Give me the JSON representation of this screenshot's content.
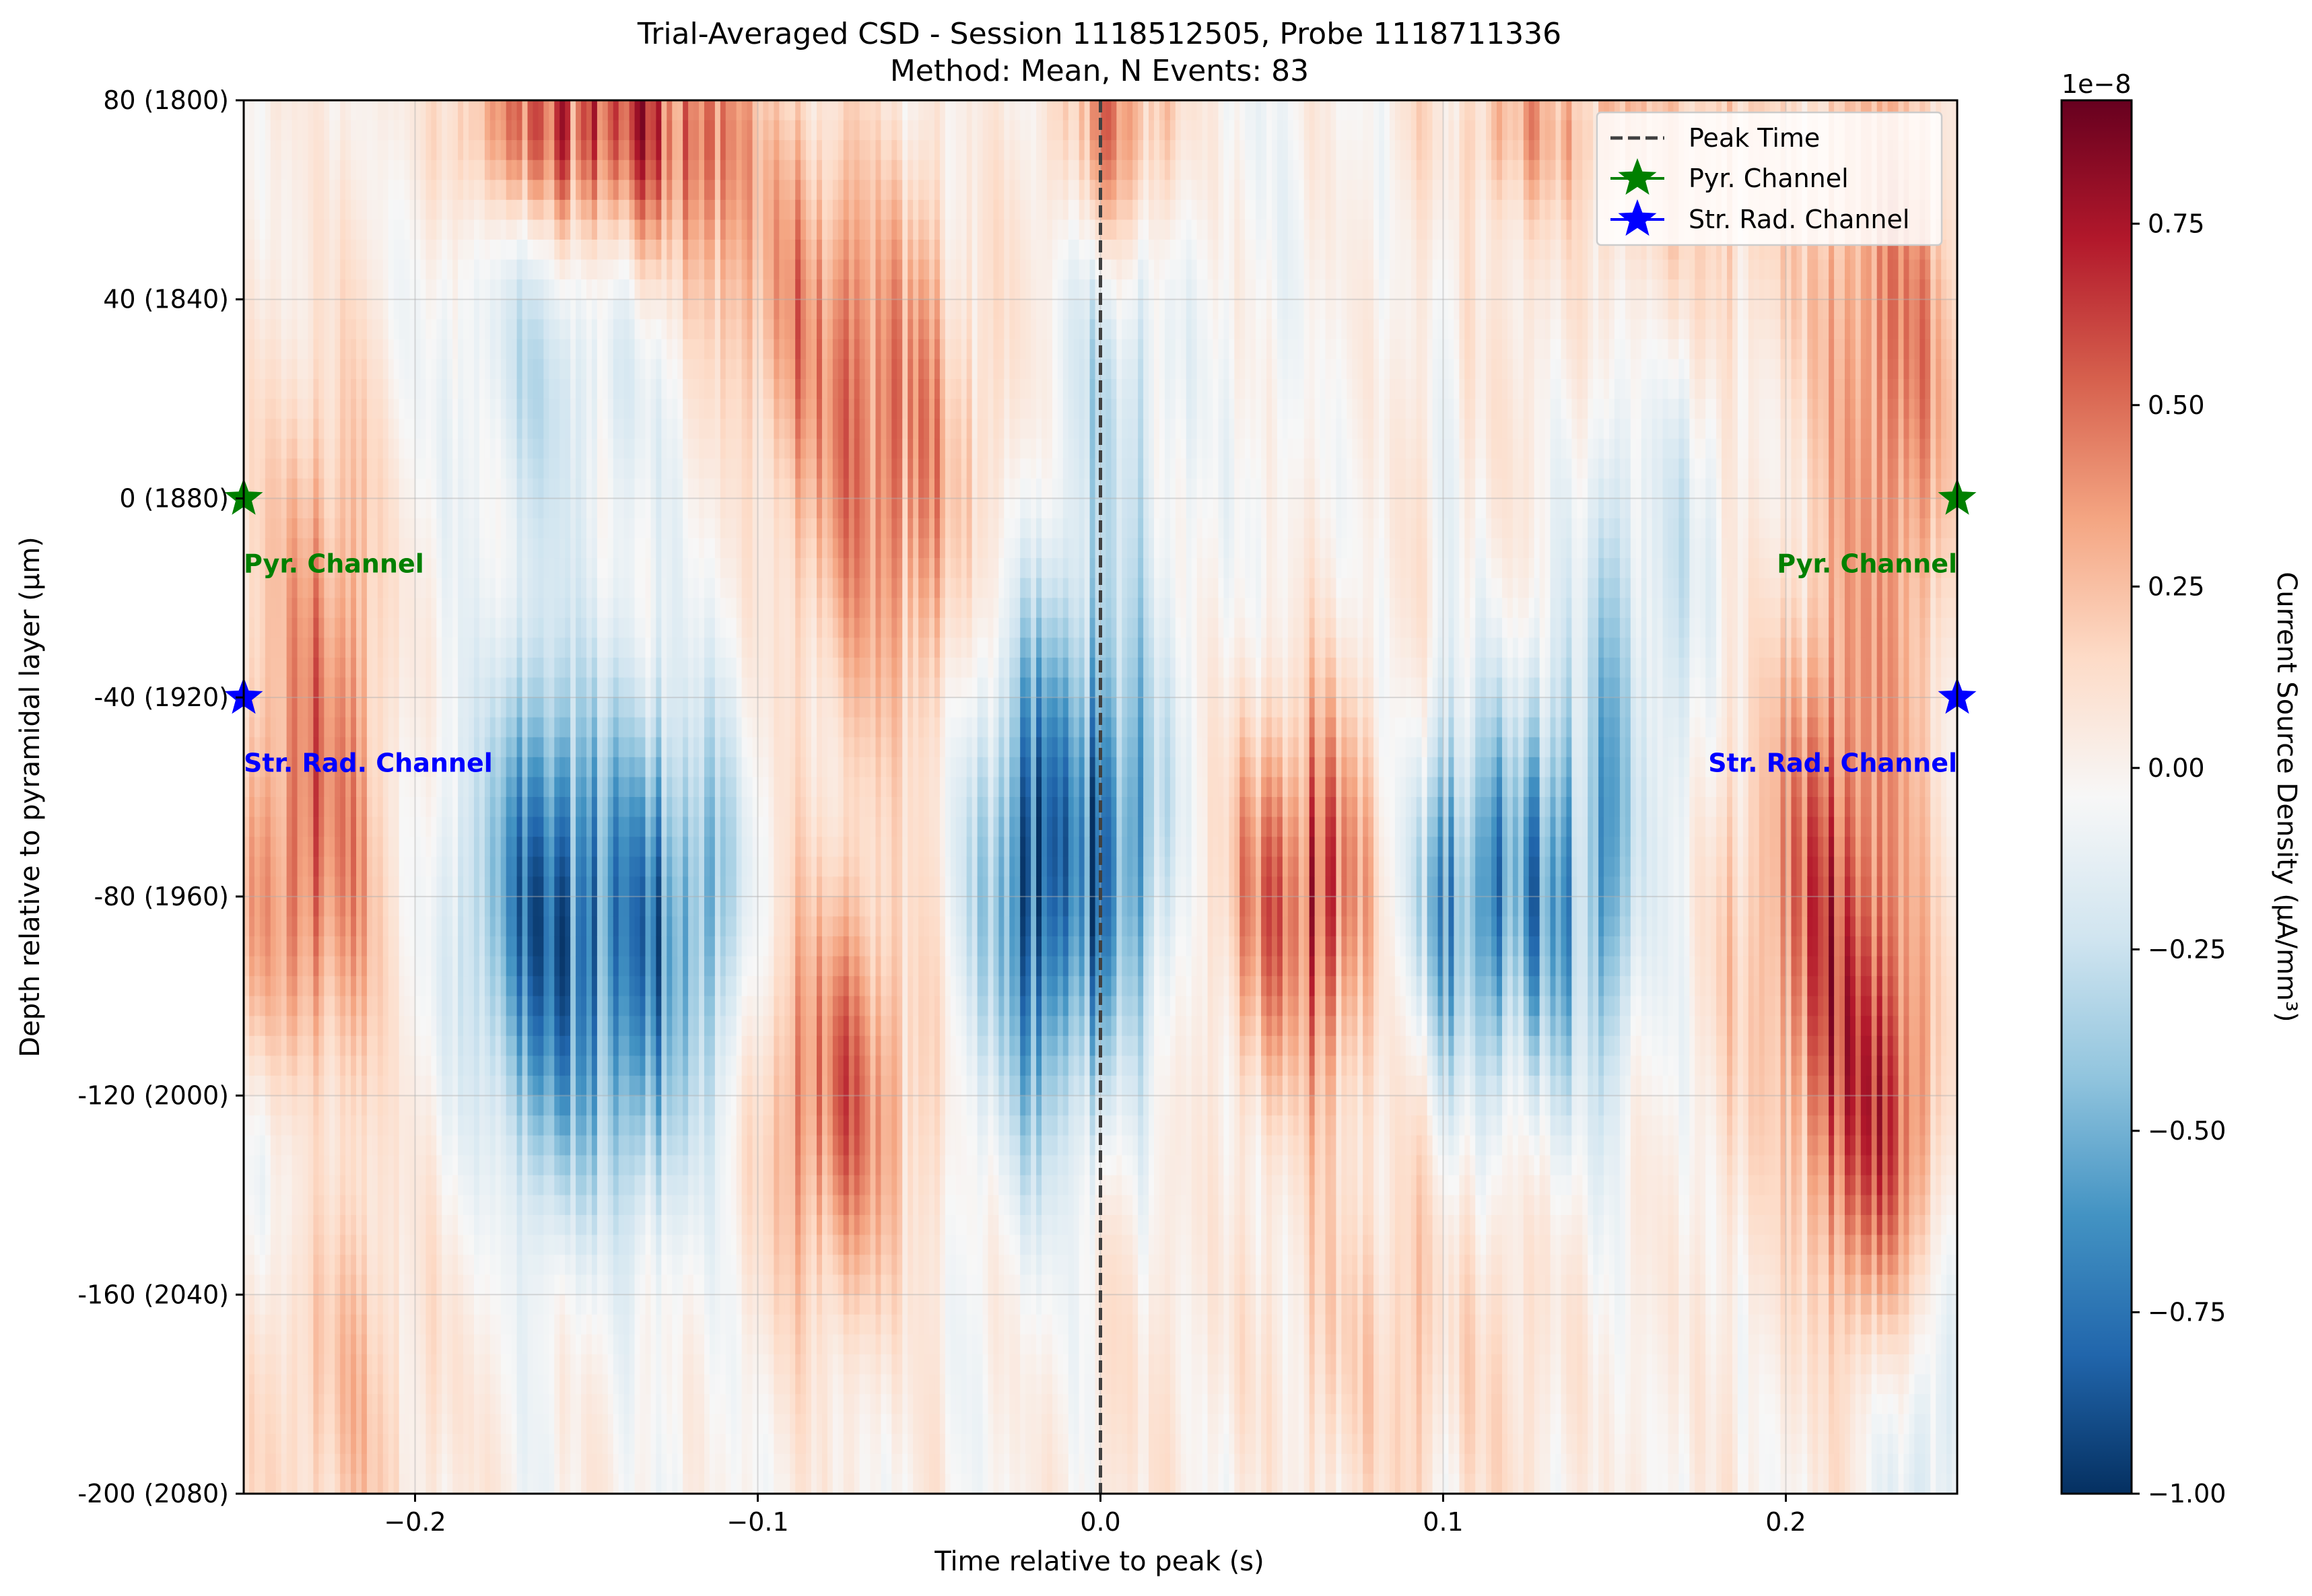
{
  "chart_data": {
    "type": "heatmap",
    "title": "Trial-Averaged CSD - Session 1118512505, Probe 1118711336",
    "subtitle": "Method: Mean, N Events: 83",
    "xlabel": "Time relative to peak (s)",
    "ylabel": "Depth relative to pyramidal layer (μm)",
    "xlim": [
      -0.25,
      0.25
    ],
    "ylim": [
      -200,
      80
    ],
    "x_ticks": [
      -0.2,
      -0.1,
      0.0,
      0.1,
      0.2
    ],
    "x_tick_labels": [
      "−0.2",
      "−0.1",
      "0.0",
      "0.1",
      "0.2"
    ],
    "y_ticks": [
      80,
      40,
      0,
      -40,
      -80,
      -120,
      -160,
      -200
    ],
    "y_tick_labels": [
      "80 (1800)",
      "40 (1840)",
      "0 (1880)",
      "-40 (1920)",
      "-80 (1960)",
      "-120 (2000)",
      "-160 (2040)",
      "-200 (2080)"
    ],
    "grid": true,
    "colormap": "RdBu_r",
    "colorbar": {
      "label": "Current Source Density (μA/mm³)",
      "offset_text": "1e−8",
      "vmin": -1.0,
      "vmax": 0.92,
      "ticks": [
        0.75,
        0.5,
        0.25,
        0.0,
        -0.25,
        -0.5,
        -0.75,
        -1.0
      ],
      "tick_labels": [
        "0.75",
        "0.50",
        "0.25",
        "0.00",
        "−0.25",
        "−0.50",
        "−0.75",
        "−1.00"
      ]
    },
    "peak_time": 0.0,
    "pyr_channel_depth": 0,
    "str_rad_channel_depth": -40,
    "legend": {
      "placement": "upper right",
      "entries": [
        {
          "label": "Peak Time",
          "style": "dashed",
          "color": "#404040"
        },
        {
          "label": "Pyr. Channel",
          "style": "star",
          "color": "#008000"
        },
        {
          "label": "Str. Rad. Channel",
          "style": "star",
          "color": "#0000ff"
        }
      ]
    },
    "annotations": [
      {
        "text": "Pyr. Channel",
        "color": "#008000",
        "x": -0.25,
        "y": -13,
        "ha": "left"
      },
      {
        "text": "Pyr. Channel",
        "color": "#008000",
        "x": 0.25,
        "y": -13,
        "ha": "right"
      },
      {
        "text": "Str. Rad. Channel",
        "color": "#0000ff",
        "x": -0.25,
        "y": -53,
        "ha": "left"
      },
      {
        "text": "Str. Rad. Channel",
        "color": "#0000ff",
        "x": 0.25,
        "y": -53,
        "ha": "right"
      }
    ],
    "blobs": [
      {
        "t": -0.13,
        "d": 75,
        "st": 0.02,
        "sd": 20,
        "a": 0.55
      },
      {
        "t": -0.165,
        "d": 75,
        "st": 0.018,
        "sd": 15,
        "a": 0.4
      },
      {
        "t": -0.06,
        "d": 5,
        "st": 0.022,
        "sd": 38,
        "a": 0.38
      },
      {
        "t": -0.078,
        "d": -120,
        "st": 0.018,
        "sd": 30,
        "a": 0.42
      },
      {
        "t": -0.227,
        "d": -30,
        "st": 0.013,
        "sd": 40,
        "a": 0.35
      },
      {
        "t": -0.232,
        "d": -85,
        "st": 0.016,
        "sd": 28,
        "a": 0.3
      },
      {
        "t": -0.22,
        "d": -180,
        "st": 0.02,
        "sd": 35,
        "a": 0.2
      },
      {
        "t": -0.095,
        "d": 40,
        "st": 0.02,
        "sd": 25,
        "a": 0.25
      },
      {
        "t": 0.06,
        "d": -80,
        "st": 0.018,
        "sd": 28,
        "a": 0.62
      },
      {
        "t": 0.005,
        "d": 75,
        "st": 0.012,
        "sd": 20,
        "a": 0.5
      },
      {
        "t": 0.21,
        "d": -80,
        "st": 0.018,
        "sd": 40,
        "a": 0.45
      },
      {
        "t": 0.228,
        "d": -130,
        "st": 0.013,
        "sd": 30,
        "a": 0.42
      },
      {
        "t": 0.235,
        "d": 25,
        "st": 0.015,
        "sd": 45,
        "a": 0.35
      },
      {
        "t": 0.175,
        "d": 50,
        "st": 0.03,
        "sd": 35,
        "a": 0.25
      },
      {
        "t": 0.13,
        "d": 75,
        "st": 0.02,
        "sd": 12,
        "a": 0.25
      },
      {
        "t": 0.08,
        "d": -170,
        "st": 0.04,
        "sd": 30,
        "a": 0.15
      },
      {
        "t": -0.16,
        "d": -80,
        "st": 0.018,
        "sd": 32,
        "a": -0.62
      },
      {
        "t": -0.125,
        "d": -80,
        "st": 0.015,
        "sd": 28,
        "a": -0.45
      },
      {
        "t": -0.018,
        "d": -75,
        "st": 0.013,
        "sd": 38,
        "a": -0.75
      },
      {
        "t": 0.008,
        "d": -70,
        "st": 0.01,
        "sd": 32,
        "a": -0.55
      },
      {
        "t": 0.005,
        "d": 30,
        "st": 0.012,
        "sd": 40,
        "a": -0.3
      },
      {
        "t": 0.13,
        "d": -80,
        "st": 0.018,
        "sd": 30,
        "a": -0.6
      },
      {
        "t": 0.1,
        "d": -80,
        "st": 0.015,
        "sd": 25,
        "a": -0.4
      },
      {
        "t": 0.17,
        "d": 20,
        "st": 0.02,
        "sd": 30,
        "a": -0.2
      },
      {
        "t": -0.155,
        "d": 30,
        "st": 0.025,
        "sd": 30,
        "a": -0.2
      },
      {
        "t": -0.14,
        "d": -120,
        "st": 0.02,
        "sd": 25,
        "a": -0.25
      },
      {
        "t": 0.155,
        "d": -30,
        "st": 0.015,
        "sd": 30,
        "a": -0.2
      },
      {
        "t": 0.24,
        "d": -185,
        "st": 0.012,
        "sd": 30,
        "a": -0.2
      },
      {
        "t": -0.24,
        "d": -130,
        "st": 0.01,
        "sd": 20,
        "a": -0.15
      }
    ]
  }
}
